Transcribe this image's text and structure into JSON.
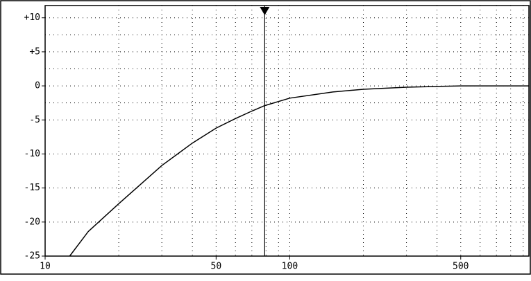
{
  "chart_data": {
    "type": "line",
    "x": [
      12.6,
      15,
      20,
      30,
      40,
      50,
      60,
      70,
      79,
      100,
      150,
      200,
      300,
      500,
      950
    ],
    "values": [
      -25,
      -21.4,
      -17.3,
      -11.7,
      -8.4,
      -6.2,
      -4.8,
      -3.7,
      -2.9,
      -1.8,
      -0.9,
      -0.5,
      -0.2,
      0,
      0
    ],
    "color": "#000000",
    "xlog": true,
    "xlim": [
      10,
      950
    ],
    "xticks": [
      10,
      50,
      100,
      500
    ],
    "xminor_ticks": [
      20,
      30,
      40,
      60,
      70,
      80,
      90,
      200,
      300,
      400,
      600,
      700,
      800,
      900
    ],
    "ylim": [
      -25,
      11.8
    ],
    "yticks": [
      {
        "value": 10,
        "label": "+10"
      },
      {
        "value": 5,
        "label": "+5"
      },
      0,
      -5,
      -10,
      -15,
      -20,
      -25
    ],
    "yminor_ticks": [
      7.5,
      2.5,
      -2.5
    ],
    "grid": true,
    "marker": 79
  }
}
